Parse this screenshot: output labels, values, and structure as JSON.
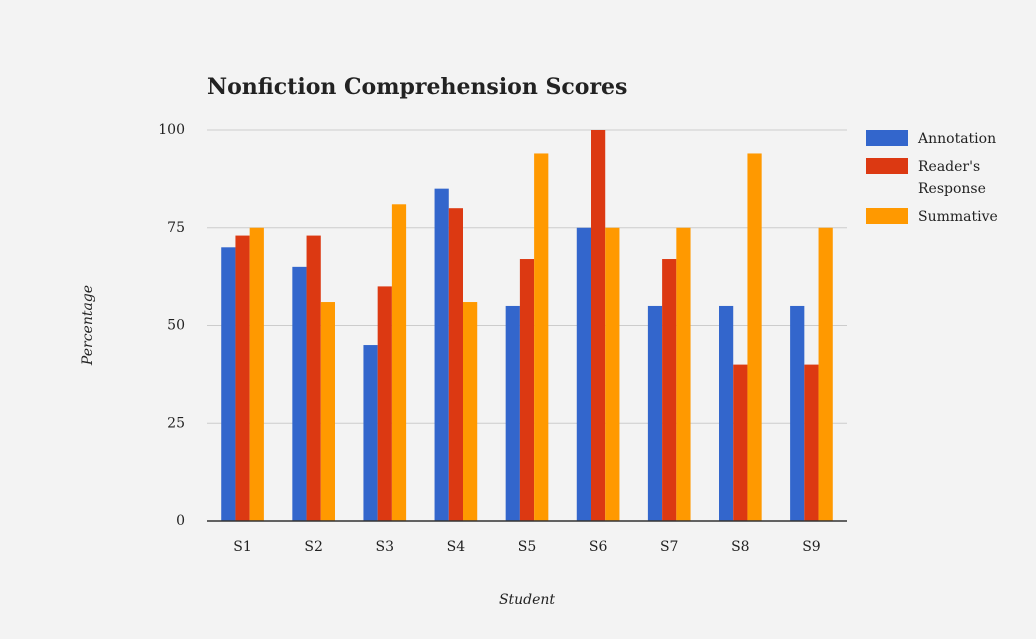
{
  "chart_data": {
    "type": "bar",
    "title": "Nonfiction Comprehension Scores",
    "x_label": "Student",
    "y_label": "Percentage",
    "categories": [
      "S1",
      "S2",
      "S3",
      "S4",
      "S5",
      "S6",
      "S7",
      "S8",
      "S9"
    ],
    "series": [
      {
        "name": "Annotation",
        "color": "#3366cc",
        "values": [
          70,
          65,
          45,
          85,
          55,
          75,
          55,
          55,
          55
        ]
      },
      {
        "name": "Reader's Response",
        "color": "#dc3912",
        "values": [
          73,
          73,
          60,
          80,
          67,
          100,
          67,
          40,
          40
        ]
      },
      {
        "name": "Summative",
        "color": "#ff9900",
        "values": [
          75,
          56,
          81,
          56,
          94,
          75,
          75,
          94,
          75
        ]
      }
    ],
    "ylim": [
      0,
      100
    ],
    "yticks": [
      0,
      25,
      50,
      75,
      100
    ],
    "grid": true,
    "legend": "right"
  }
}
